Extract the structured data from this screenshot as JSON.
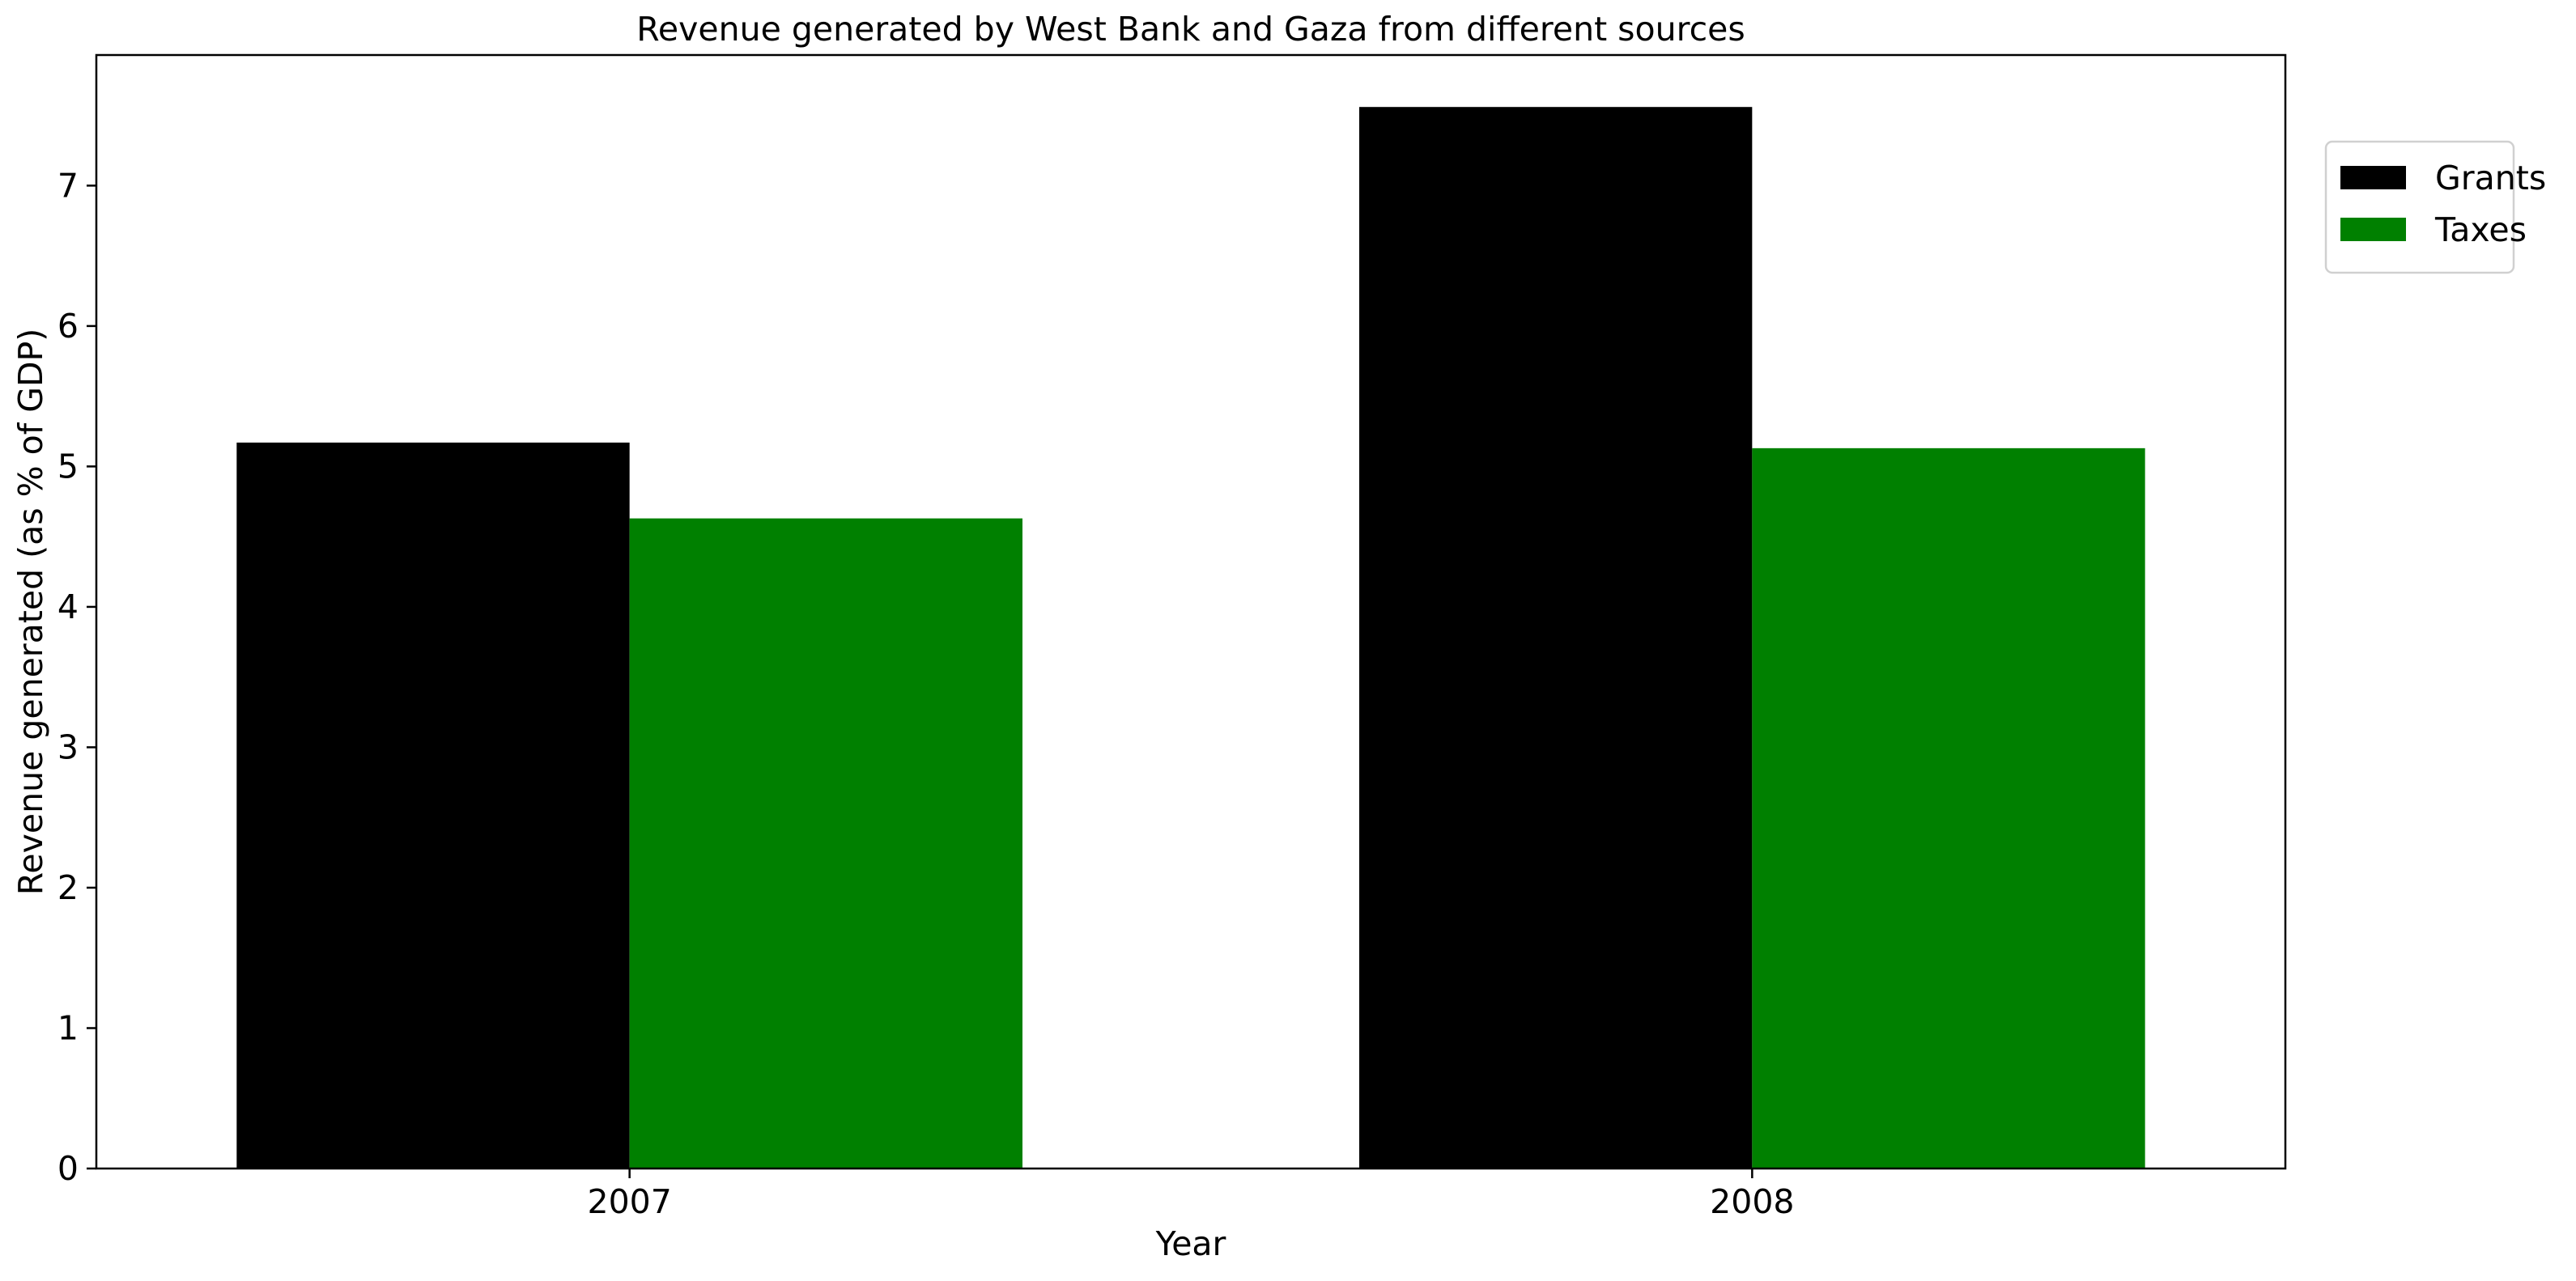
{
  "chart_data": {
    "type": "bar",
    "title": "Revenue generated by West Bank and Gaza from different sources",
    "xlabel": "Year",
    "ylabel": "Revenue generated (as % of GDP)",
    "categories": [
      "2007",
      "2008"
    ],
    "series": [
      {
        "name": "Grants",
        "color": "#000000",
        "values": [
          5.17,
          7.56
        ]
      },
      {
        "name": "Taxes",
        "color": "#008000",
        "values": [
          4.63,
          5.13
        ]
      }
    ],
    "ylim": [
      0,
      7.93
    ],
    "yticks": [
      0,
      1,
      2,
      3,
      4,
      5,
      6,
      7
    ],
    "grid": false,
    "legend_position": "outside top-right"
  }
}
